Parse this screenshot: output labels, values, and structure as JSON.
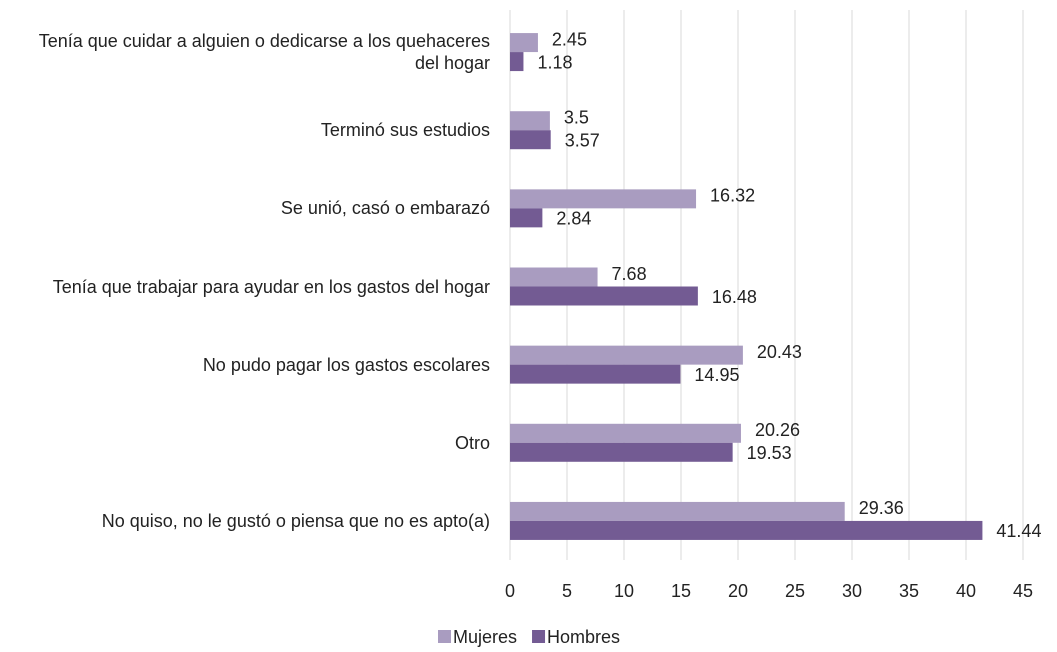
{
  "chart_data": {
    "type": "bar",
    "orientation": "horizontal",
    "categories": [
      "Tenía que cuidar a alguien o dedicarse a los quehaceres del hogar",
      "Terminó sus estudios",
      "Se unió, casó o embarazó",
      "Tenía que trabajar para ayudar en los gastos del hogar",
      "No pudo pagar los gastos escolares",
      "Otro",
      "No quiso, no le gustó o piensa que no es apto(a)"
    ],
    "series": [
      {
        "name": "Mujeres",
        "color": "#a99cc0",
        "values": [
          2.45,
          3.5,
          16.32,
          7.68,
          20.43,
          20.26,
          29.36
        ]
      },
      {
        "name": "Hombres",
        "color": "#735b93",
        "values": [
          1.18,
          3.57,
          2.84,
          16.48,
          14.95,
          19.53,
          41.44
        ]
      }
    ],
    "xlim": [
      0,
      45
    ],
    "xticks": [
      0,
      5,
      10,
      15,
      20,
      25,
      30,
      35,
      40,
      45
    ],
    "grid": true,
    "legend": "bottom"
  }
}
